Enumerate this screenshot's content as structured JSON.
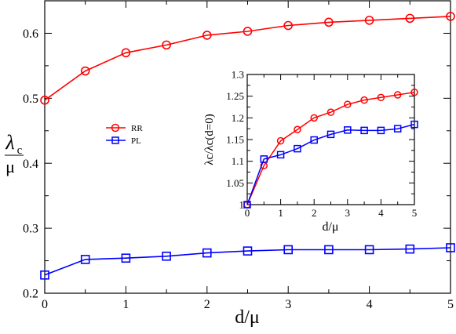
{
  "chart_data": [
    {
      "type": "line",
      "xlabel": "d/μ",
      "ylabel_main": "λ",
      "ylabel_sub": "c",
      "ylabel_denom": "μ",
      "xlim": [
        0,
        5
      ],
      "ylim": [
        0.2,
        0.65
      ],
      "xticks": [
        "0",
        "1",
        "2",
        "3",
        "4",
        "5"
      ],
      "yticks": [
        "0.2",
        "0.3",
        "0.4",
        "0.5",
        "0.6"
      ],
      "grid": false,
      "legend_placement": "center-left",
      "series": [
        {
          "name": "RR",
          "color": "#ff0000",
          "marker": "circle",
          "x": [
            0,
            0.5,
            1,
            1.5,
            2,
            2.5,
            3,
            3.5,
            4,
            4.5,
            5
          ],
          "y": [
            0.497,
            0.542,
            0.57,
            0.582,
            0.597,
            0.603,
            0.612,
            0.617,
            0.62,
            0.623,
            0.626
          ]
        },
        {
          "name": "PL",
          "color": "#0000ff",
          "marker": "square",
          "x": [
            0,
            0.5,
            1,
            1.5,
            2,
            2.5,
            3,
            3.5,
            4,
            4.5,
            5
          ],
          "y": [
            0.228,
            0.252,
            0.254,
            0.257,
            0.262,
            0.265,
            0.267,
            0.267,
            0.267,
            0.268,
            0.27
          ]
        }
      ]
    },
    {
      "type": "line",
      "xlabel": "d/μ",
      "ylabel": "λc/λc(d=0)",
      "xlim": [
        0,
        5
      ],
      "ylim": [
        1.0,
        1.3
      ],
      "xticks": [
        "0",
        "1",
        "2",
        "3",
        "4",
        "5"
      ],
      "yticks": [
        "1",
        "1.05",
        "1.1",
        "1.15",
        "1.2",
        "1.25",
        "1.3"
      ],
      "grid": false,
      "series": [
        {
          "color": "#ff0000",
          "marker": "circle",
          "x": [
            0,
            0.5,
            1,
            1.5,
            2,
            2.5,
            3,
            3.5,
            4,
            4.5,
            5
          ],
          "y": [
            1.0,
            1.09,
            1.147,
            1.173,
            1.2,
            1.213,
            1.231,
            1.241,
            1.247,
            1.253,
            1.259
          ]
        },
        {
          "color": "#0000ff",
          "marker": "square",
          "x": [
            0,
            0.5,
            1,
            1.5,
            2,
            2.5,
            3,
            3.5,
            4,
            4.5,
            5
          ],
          "y": [
            1.0,
            1.105,
            1.115,
            1.129,
            1.149,
            1.162,
            1.172,
            1.171,
            1.171,
            1.175,
            1.185
          ]
        }
      ]
    }
  ]
}
